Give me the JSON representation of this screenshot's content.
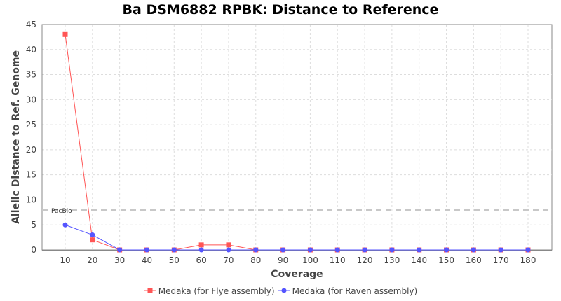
{
  "chart_data": {
    "type": "line",
    "title": "Ba DSM6882 RPBK: Distance to Reference",
    "xlabel": "Coverage",
    "ylabel": "Allelic Distance to Ref. Genome",
    "categories": [
      "10",
      "20",
      "30",
      "40",
      "50",
      "60",
      "70",
      "80",
      "90",
      "100",
      "110",
      "120",
      "130",
      "140",
      "150",
      "160",
      "170",
      "180"
    ],
    "ylim": [
      0,
      45
    ],
    "yticks": [
      0,
      5,
      10,
      15,
      20,
      25,
      30,
      35,
      40,
      45
    ],
    "grid": true,
    "legend_placement": "bottom",
    "reference_line": {
      "label": "PacBio",
      "value": 8,
      "color": "#c8c8c8"
    },
    "series": [
      {
        "name": "Medaka (for Flye assembly)",
        "color": "#ff5555",
        "marker": "square",
        "values": [
          43,
          2,
          0,
          0,
          0,
          1,
          1,
          0,
          0,
          0,
          0,
          0,
          0,
          0,
          0,
          0,
          0,
          0
        ]
      },
      {
        "name": "Medaka (for Raven assembly)",
        "color": "#5555ff",
        "marker": "circle",
        "values": [
          5,
          3,
          0,
          0,
          0,
          0,
          0,
          0,
          0,
          0,
          0,
          0,
          0,
          0,
          0,
          0,
          0,
          0
        ]
      }
    ]
  }
}
